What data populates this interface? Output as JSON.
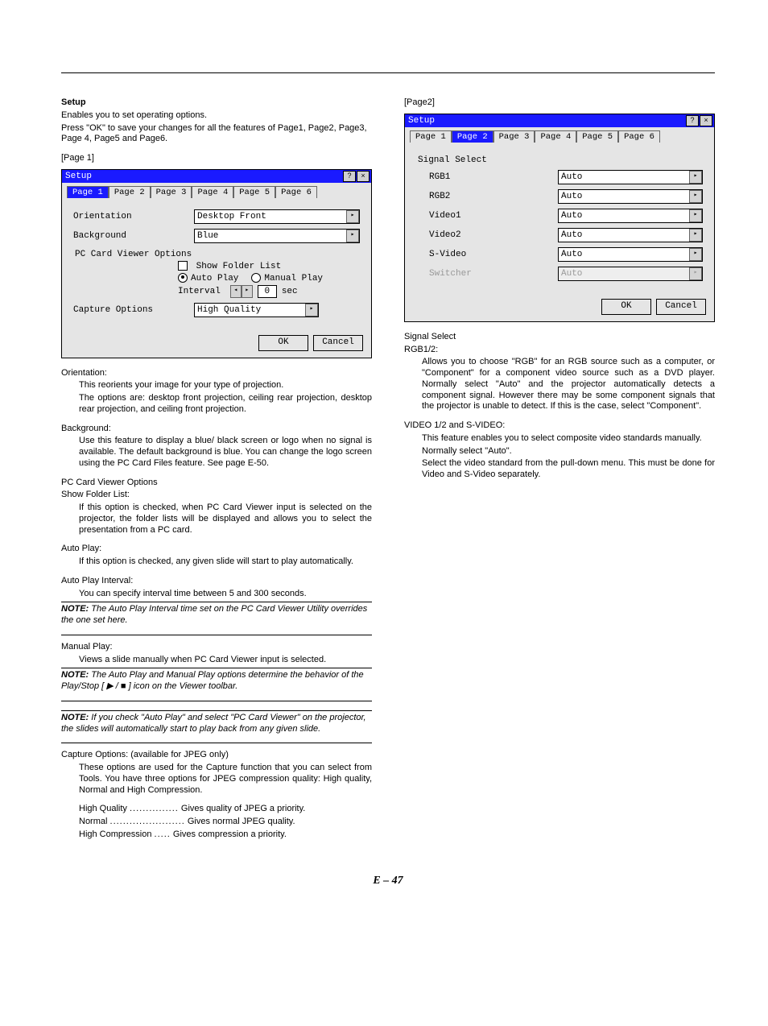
{
  "doc": {
    "page_number_label": "E – 47"
  },
  "left": {
    "heading": "Setup",
    "intro_l1": "Enables you to set operating options.",
    "intro_l2": "Press \"OK\" to save your changes for all the features of Page1, Page2, Page3, Page 4, Page5 and Page6.",
    "page1_label": "[Page 1]",
    "orientation_h": "Orientation:",
    "orientation_p1": "This reorients your image for your type of projection.",
    "orientation_p2": "The options are: desktop front projection, ceiling rear projection, desktop rear projection, and ceiling front projection.",
    "background_h": "Background:",
    "background_p": "Use this feature to display a blue/ black screen or logo when no signal is available. The default background is blue. You can change the logo screen using the PC Card Files feature. See page E-50.",
    "pcv_h1": "PC Card Viewer Options",
    "pcv_h2": "Show Folder List:",
    "pcv_p1": "If this option is checked, when PC Card Viewer input is selected on the projector, the folder lists will be displayed and allows you to select the presentation from a PC card.",
    "autoplay_h": "Auto Play:",
    "autoplay_p": "If this option is checked, any given slide will start to play automatically.",
    "interval_h": "Auto Play Interval:",
    "interval_p": "You can specify interval time between 5 and 300 seconds.",
    "note1": "NOTE: The Auto Play Interval time set on the PC Card Viewer Utility overrides the one set here.",
    "manual_h": "Manual Play:",
    "manual_p": "Views a slide manually when PC Card Viewer input is selected.",
    "note2": "NOTE: The Auto Play and Manual Play options determine the behavior of the Play/Stop [  ▶  /  ■  ] icon on the Viewer toolbar.",
    "note3": "NOTE: If you check \"Auto Play\" and select \"PC Card Viewer\" on the projector, the slides will automatically start to play back from any given slide.",
    "capture_h": "Capture Options: (available for JPEG only)",
    "capture_p": "These options are used for the Capture function that you can select from Tools. You have three options for JPEG compression quality: High quality, Normal and High Compression.",
    "cap_hq_l": "High Quality",
    "cap_hq_r": "Gives quality of JPEG a priority.",
    "cap_n_l": "Normal",
    "cap_n_r": "Gives normal JPEG quality.",
    "cap_hc_l": "High Compression",
    "cap_hc_r": "Gives compression a priority."
  },
  "right": {
    "page2_label": "[Page2]",
    "sig_h": "Signal Select",
    "rgb_h": "RGB1/2:",
    "rgb_p": "Allows you to choose \"RGB\" for an RGB source such as a computer, or \"Component\" for a component video source such as a DVD player. Normally select \"Auto\" and the projector automatically detects a component signal. However there may be some component signals that the projector is unable to detect. If this is the case, select \"Component\".",
    "vid_h": "VIDEO 1/2 and S-VIDEO:",
    "vid_p1": "This feature enables you to select composite video standards manually.",
    "vid_p2": "Normally select \"Auto\".",
    "vid_p3": "Select the video standard from the pull-down menu. This must be done for Video and S-Video separately."
  },
  "dlg1": {
    "title": "Setup",
    "tabs": [
      "Page 1",
      "Page 2",
      "Page 3",
      "Page 4",
      "Page 5",
      "Page 6"
    ],
    "active_tab": 0,
    "orientation_label": "Orientation",
    "orientation_value": "Desktop Front",
    "background_label": "Background",
    "background_value": "Blue",
    "pcv_label": "PC Card Viewer Options",
    "show_folder": "Show Folder List",
    "autoplay": "Auto Play",
    "manual": "Manual Play",
    "interval_label": "Interval",
    "interval_value": "0",
    "interval_unit": "sec",
    "capture_label": "Capture Options",
    "capture_value": "High Quality",
    "ok": "OK",
    "cancel": "Cancel"
  },
  "dlg2": {
    "title": "Setup",
    "tabs": [
      "Page 1",
      "Page 2",
      "Page 3",
      "Page 4",
      "Page 5",
      "Page 6"
    ],
    "active_tab": 1,
    "section": "Signal Select",
    "rows": [
      {
        "label": "RGB1",
        "value": "Auto",
        "disabled": false
      },
      {
        "label": "RGB2",
        "value": "Auto",
        "disabled": false
      },
      {
        "label": "Video1",
        "value": "Auto",
        "disabled": false
      },
      {
        "label": "Video2",
        "value": "Auto",
        "disabled": false
      },
      {
        "label": "S-Video",
        "value": "Auto",
        "disabled": false
      },
      {
        "label": "Switcher",
        "value": "Auto",
        "disabled": true
      }
    ],
    "ok": "OK",
    "cancel": "Cancel"
  },
  "style": {
    "titlebar_bg": "#1a1aff",
    "titlebar_fg": "#ffffff",
    "dialog_bg": "#e5e5e5",
    "page_bg": "#ffffff"
  }
}
